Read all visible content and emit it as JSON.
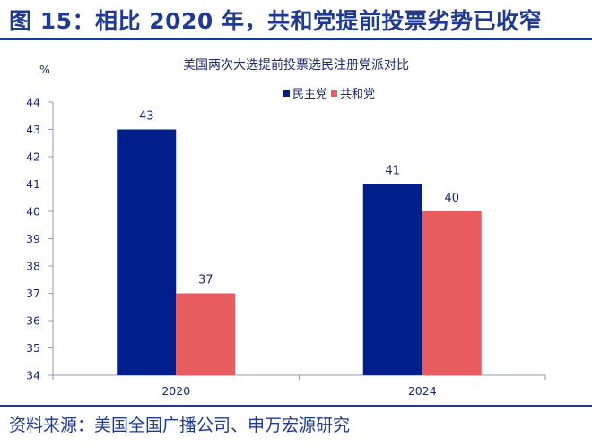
{
  "header": {
    "title": "图 15：相比 2020 年，共和党提前投票劣势已收窄"
  },
  "footer": {
    "source": "资料来源：美国全国广播公司、申万宏源研究"
  },
  "chart_data": {
    "type": "bar",
    "title": "美国两次大选提前投票选民注册党派对比",
    "ylabel": "%",
    "ylim": [
      34,
      44
    ],
    "yticks": [
      34,
      35,
      36,
      37,
      38,
      39,
      40,
      41,
      42,
      43,
      44
    ],
    "categories": [
      "2020",
      "2024"
    ],
    "series": [
      {
        "name": "民主党",
        "values": [
          43,
          41
        ],
        "color": "#001f8c"
      },
      {
        "name": "共和党",
        "values": [
          37,
          40
        ],
        "color": "#e85b5f"
      }
    ],
    "legend": "top-right",
    "grid": false
  }
}
